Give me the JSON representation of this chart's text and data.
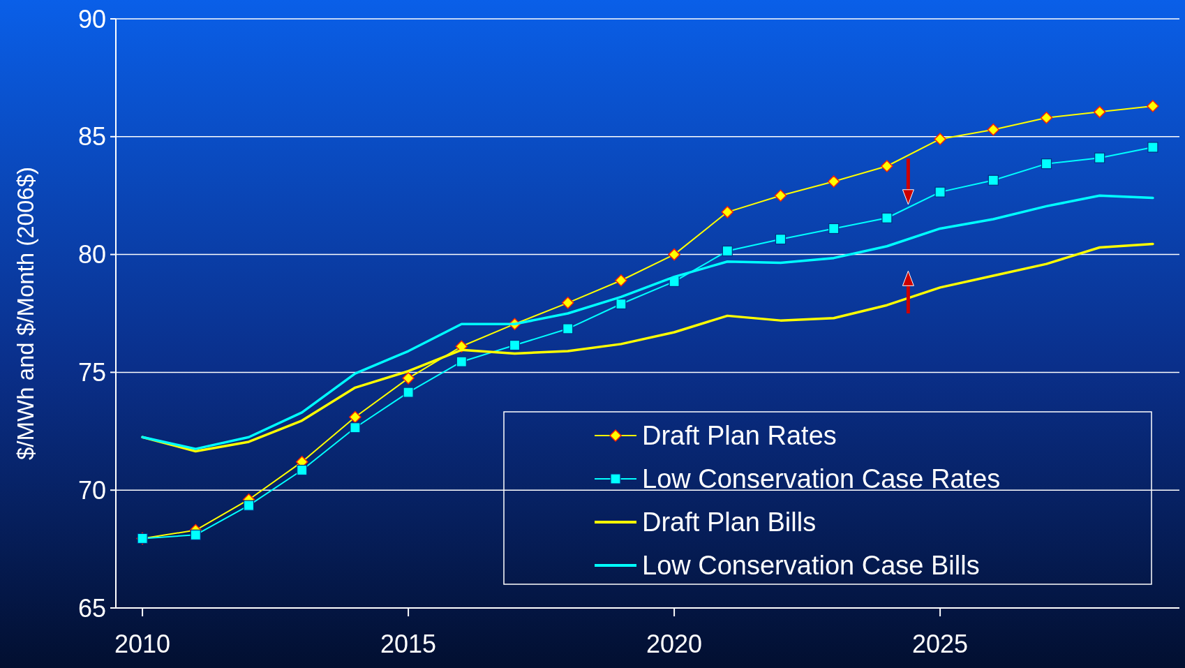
{
  "chart_data": {
    "type": "line",
    "ylabel": "$/MWh and $/Month (2006$)",
    "x": [
      2010,
      2011,
      2012,
      2013,
      2014,
      2015,
      2016,
      2017,
      2018,
      2019,
      2020,
      2021,
      2022,
      2023,
      2024,
      2025,
      2026,
      2027,
      2028,
      2029
    ],
    "xlim": [
      2009.5,
      2029.5
    ],
    "xticks": [
      2010,
      2015,
      2020,
      2025
    ],
    "ylim": [
      65,
      90
    ],
    "yticks": [
      65,
      70,
      75,
      80,
      85,
      90
    ],
    "grid": "y",
    "legend": "bottom right",
    "series": [
      {
        "name": "Draft Plan Rates",
        "color": "#ffff00",
        "marker": "diamond",
        "values": [
          67.95,
          68.3,
          69.6,
          71.2,
          73.1,
          74.75,
          76.1,
          77.05,
          77.95,
          78.9,
          80.0,
          81.8,
          82.5,
          83.1,
          83.75,
          84.9,
          85.3,
          85.8,
          86.05,
          86.3
        ]
      },
      {
        "name": "Low Conservation Case Rates",
        "color": "#00ffff",
        "marker": "square",
        "values": [
          67.95,
          68.1,
          69.35,
          70.85,
          72.65,
          74.15,
          75.45,
          76.15,
          76.85,
          77.9,
          78.85,
          80.15,
          80.65,
          81.1,
          81.55,
          82.65,
          83.15,
          83.85,
          84.1,
          84.55
        ]
      },
      {
        "name": "Draft Plan Bills",
        "color": "#ffff00",
        "marker": "none",
        "values": [
          72.25,
          71.65,
          72.05,
          72.95,
          74.35,
          75.05,
          75.95,
          75.8,
          75.9,
          76.2,
          76.7,
          77.4,
          77.2,
          77.3,
          77.85,
          78.6,
          79.1,
          79.6,
          80.3,
          80.45
        ]
      },
      {
        "name": "Low Conservation Case Bills",
        "color": "#00ffff",
        "marker": "none",
        "values": [
          72.25,
          71.75,
          72.25,
          73.3,
          74.95,
          75.9,
          77.05,
          77.05,
          77.5,
          78.2,
          79.05,
          79.7,
          79.65,
          79.85,
          80.35,
          81.1,
          81.5,
          82.05,
          82.5,
          82.4
        ]
      }
    ]
  }
}
